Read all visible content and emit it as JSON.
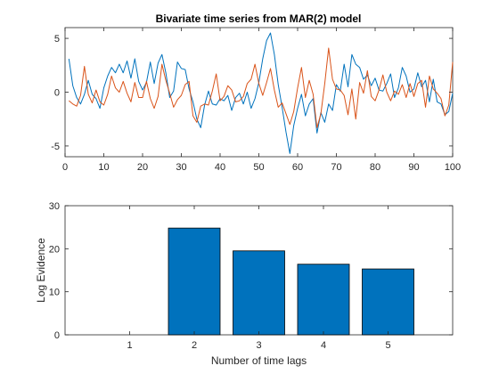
{
  "chart_data": [
    {
      "type": "line",
      "title": "Bivariate time series from MAR(2) model",
      "xlabel": "",
      "ylabel": "",
      "xlim": [
        0,
        100
      ],
      "ylim": [
        -6,
        6
      ],
      "xticks": [
        "0",
        "10",
        "20",
        "30",
        "40",
        "50",
        "60",
        "70",
        "80",
        "90",
        "100"
      ],
      "yticks": [
        "-5",
        "0",
        "5"
      ],
      "grid": false,
      "x": [
        1,
        2,
        3,
        4,
        5,
        6,
        7,
        8,
        9,
        10,
        11,
        12,
        13,
        14,
        15,
        16,
        17,
        18,
        19,
        20,
        21,
        22,
        23,
        24,
        25,
        26,
        27,
        28,
        29,
        30,
        31,
        32,
        33,
        34,
        35,
        36,
        37,
        38,
        39,
        40,
        41,
        42,
        43,
        44,
        45,
        46,
        47,
        48,
        49,
        50,
        51,
        52,
        53,
        54,
        55,
        56,
        57,
        58,
        59,
        60,
        61,
        62,
        63,
        64,
        65,
        66,
        67,
        68,
        69,
        70,
        71,
        72,
        73,
        74,
        75,
        76,
        77,
        78,
        79,
        80,
        81,
        82,
        83,
        84,
        85,
        86,
        87,
        88,
        89,
        90,
        91,
        92,
        93,
        94,
        95,
        96,
        97,
        98,
        99,
        100
      ],
      "series": [
        {
          "color": "#0072bd",
          "values": [
            3.1,
            0.6,
            -0.5,
            -1.1,
            -0.2,
            1.1,
            -0.2,
            -0.6,
            -1.5,
            0.4,
            1.5,
            2.3,
            1.8,
            2.6,
            1.8,
            2.9,
            1.3,
            3.1,
            1.0,
            0.2,
            0.9,
            2.8,
            0.8,
            2.7,
            3.5,
            1.8,
            -0.5,
            0.1,
            2.8,
            2.2,
            2.1,
            0.3,
            -0.9,
            -2.5,
            -3.3,
            -1.2,
            0.1,
            -1.1,
            -1.2,
            -0.6,
            -0.8,
            -0.3,
            -1.7,
            -0.5,
            -0.1,
            -1.1,
            0.0,
            -1.5,
            -0.6,
            0.9,
            3.1,
            4.8,
            5.5,
            3.5,
            0.7,
            -1.4,
            -3.7,
            -5.7,
            -3.1,
            -1.5,
            -0.2,
            -2.2,
            -1.1,
            -0.6,
            -3.8,
            -1.9,
            -2.8,
            -1.1,
            -1.7,
            0.7,
            0.1,
            2.6,
            0.5,
            3.5,
            2.6,
            2.3,
            1.2,
            1.6,
            0.6,
            1.3,
            0.2,
            0.1,
            0.8,
            1.7,
            -0.5,
            0.4,
            2.3,
            1.5,
            0.0,
            0.3,
            1.8,
            0.5,
            1.1,
            -0.9,
            1.2,
            -0.9,
            -1.1,
            -2.1,
            -1.8,
            -0.1
          ]
        },
        {
          "color": "#d95319",
          "values": [
            -0.8,
            -1.1,
            -1.3,
            -0.3,
            2.4,
            -0.2,
            -1.0,
            0.2,
            -0.9,
            -1.2,
            -0.2,
            1.5,
            0.4,
            0.0,
            1.0,
            -0.1,
            -0.9,
            0.9,
            -0.5,
            -0.5,
            1.0,
            -0.6,
            -1.5,
            -0.4,
            2.6,
            1.1,
            -0.1,
            -1.4,
            -0.7,
            -0.3,
            0.7,
            1.0,
            -2.2,
            -2.8,
            -1.3,
            -1.1,
            -1.2,
            0.1,
            1.7,
            -0.8,
            -0.4,
            0.6,
            0.2,
            -0.9,
            -0.8,
            -0.4,
            0.8,
            1.2,
            2.6,
            0.8,
            -0.3,
            0.9,
            2.2,
            0.2,
            -1.4,
            -1.0,
            -2.0,
            -3.0,
            -1.8,
            0.4,
            2.3,
            -0.5,
            1.1,
            -0.2,
            -3.3,
            -2.0,
            0.8,
            4.1,
            1.2,
            0.3,
            0.2,
            -0.3,
            -2.1,
            0.3,
            -2.5,
            0.9,
            -0.1,
            2.0,
            -0.4,
            -0.8,
            0.2,
            1.6,
            0.0,
            -0.8,
            0.1,
            -0.2,
            0.7,
            -0.5,
            0.8,
            -0.4,
            0.8,
            1.1,
            -1.4,
            1.5,
            0.3,
            -0.1,
            -0.6,
            -2.2,
            -1.2,
            2.8
          ]
        }
      ]
    },
    {
      "type": "bar",
      "title": "",
      "xlabel": "Number of time lags",
      "ylabel": "Log Evidence",
      "xlim": [
        0,
        6
      ],
      "ylim": [
        0,
        30
      ],
      "yticks": [
        "0",
        "10",
        "20",
        "30"
      ],
      "grid": false,
      "categories": [
        "1",
        "2",
        "3",
        "4",
        "5"
      ],
      "values": [
        0.0,
        24.8,
        19.5,
        16.4,
        15.3
      ],
      "color": "#0072bd"
    }
  ]
}
